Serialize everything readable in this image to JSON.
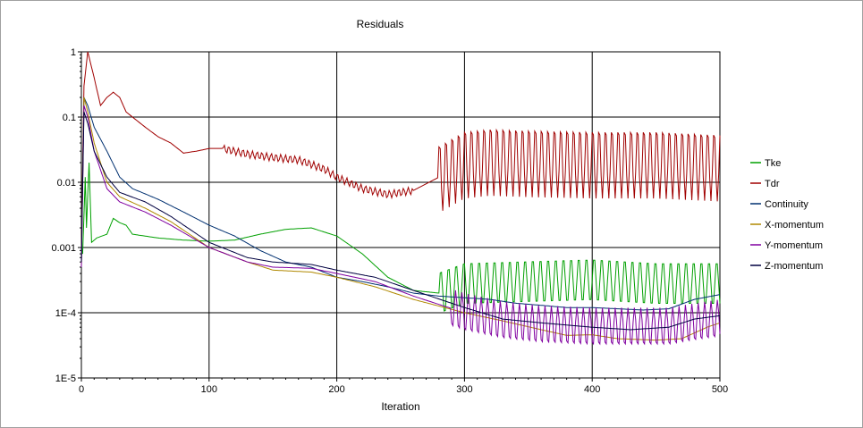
{
  "chart_data": {
    "type": "line",
    "title": "Residuals",
    "xlabel": "Iteration",
    "ylabel": "",
    "xlim": [
      0,
      500
    ],
    "ylim": [
      1e-05,
      1
    ],
    "y_scale": "log",
    "grid": true,
    "legend_position": "right",
    "x_ticks": [
      "0",
      "100",
      "200",
      "300",
      "400",
      "500"
    ],
    "y_ticks": [
      "1",
      "0.1",
      "0.01",
      "0.001",
      "1E-4",
      "1E-5"
    ],
    "series": [
      {
        "name": "Tke",
        "color": "#00a000",
        "oscillation": {
          "start": 280,
          "period": 6,
          "amplitude": 0.35
        },
        "points": [
          [
            1,
            0.0008
          ],
          [
            3,
            0.012
          ],
          [
            4,
            0.002
          ],
          [
            6,
            0.02
          ],
          [
            8,
            0.0012
          ],
          [
            12,
            0.0014
          ],
          [
            20,
            0.0016
          ],
          [
            25,
            0.0028
          ],
          [
            30,
            0.0024
          ],
          [
            35,
            0.0022
          ],
          [
            40,
            0.0016
          ],
          [
            60,
            0.0014
          ],
          [
            80,
            0.0013
          ],
          [
            100,
            0.00125
          ],
          [
            120,
            0.0013
          ],
          [
            140,
            0.0016
          ],
          [
            160,
            0.0019
          ],
          [
            180,
            0.002
          ],
          [
            200,
            0.0015
          ],
          [
            220,
            0.0008
          ],
          [
            240,
            0.00035
          ],
          [
            260,
            0.00022
          ],
          [
            280,
            0.0002
          ],
          [
            300,
            0.00028
          ],
          [
            350,
            0.0003
          ],
          [
            400,
            0.00032
          ],
          [
            450,
            0.00028
          ],
          [
            500,
            0.00028
          ]
        ]
      },
      {
        "name": "Tdr",
        "color": "#a00000",
        "oscillation": {
          "start": 280,
          "period": 5,
          "amplitude": 0.55
        },
        "points": [
          [
            0,
            0.001
          ],
          [
            2,
            0.3
          ],
          [
            5,
            1.0
          ],
          [
            10,
            0.4
          ],
          [
            15,
            0.15
          ],
          [
            20,
            0.2
          ],
          [
            25,
            0.24
          ],
          [
            30,
            0.2
          ],
          [
            35,
            0.12
          ],
          [
            40,
            0.1
          ],
          [
            50,
            0.07
          ],
          [
            60,
            0.05
          ],
          [
            70,
            0.04
          ],
          [
            80,
            0.028
          ],
          [
            90,
            0.03
          ],
          [
            100,
            0.033
          ],
          [
            110,
            0.033
          ],
          [
            130,
            0.027
          ],
          [
            150,
            0.024
          ],
          [
            170,
            0.022
          ],
          [
            190,
            0.016
          ],
          [
            200,
            0.012
          ],
          [
            220,
            0.008
          ],
          [
            240,
            0.0065
          ],
          [
            260,
            0.0075
          ],
          [
            280,
            0.012
          ],
          [
            300,
            0.02
          ],
          [
            320,
            0.022
          ],
          [
            350,
            0.021
          ],
          [
            400,
            0.02
          ],
          [
            450,
            0.02
          ],
          [
            500,
            0.018
          ]
        ]
      },
      {
        "name": "Continuity",
        "color": "#003070",
        "oscillation": null,
        "points": [
          [
            0,
            0.0006
          ],
          [
            2,
            0.2
          ],
          [
            5,
            0.15
          ],
          [
            10,
            0.07
          ],
          [
            20,
            0.03
          ],
          [
            30,
            0.012
          ],
          [
            40,
            0.008
          ],
          [
            60,
            0.0055
          ],
          [
            80,
            0.0035
          ],
          [
            100,
            0.0022
          ],
          [
            120,
            0.0015
          ],
          [
            140,
            0.0009
          ],
          [
            160,
            0.0006
          ],
          [
            180,
            0.0005
          ],
          [
            200,
            0.00035
          ],
          [
            220,
            0.0003
          ],
          [
            240,
            0.00025
          ],
          [
            260,
            0.0002
          ],
          [
            280,
            0.00018
          ],
          [
            300,
            0.00017
          ],
          [
            320,
            0.00016
          ],
          [
            340,
            0.00014
          ],
          [
            360,
            0.00013
          ],
          [
            380,
            0.00012
          ],
          [
            400,
            0.00012
          ],
          [
            420,
            0.000115
          ],
          [
            440,
            0.00011
          ],
          [
            460,
            0.000115
          ],
          [
            480,
            0.00016
          ],
          [
            500,
            0.00019
          ]
        ]
      },
      {
        "name": "X-momentum",
        "color": "#b08800",
        "oscillation": null,
        "points": [
          [
            0,
            0.0005
          ],
          [
            2,
            0.2
          ],
          [
            5,
            0.12
          ],
          [
            10,
            0.04
          ],
          [
            20,
            0.01
          ],
          [
            30,
            0.006
          ],
          [
            50,
            0.004
          ],
          [
            70,
            0.0025
          ],
          [
            100,
            0.001
          ],
          [
            130,
            0.0006
          ],
          [
            150,
            0.00045
          ],
          [
            180,
            0.00042
          ],
          [
            200,
            0.00035
          ],
          [
            230,
            0.00025
          ],
          [
            260,
            0.00016
          ],
          [
            300,
            0.0001
          ],
          [
            330,
            7.5e-05
          ],
          [
            360,
            5.5e-05
          ],
          [
            380,
            4.5e-05
          ],
          [
            400,
            4.6e-05
          ],
          [
            420,
            4e-05
          ],
          [
            450,
            3.8e-05
          ],
          [
            470,
            4e-05
          ],
          [
            490,
            6e-05
          ],
          [
            500,
            7e-05
          ]
        ]
      },
      {
        "name": "Y-momentum",
        "color": "#8000a0",
        "oscillation": {
          "start": 290,
          "period": 5,
          "amplitude": 0.3
        },
        "points": [
          [
            0,
            0.0005
          ],
          [
            2,
            0.15
          ],
          [
            5,
            0.1
          ],
          [
            10,
            0.03
          ],
          [
            20,
            0.008
          ],
          [
            30,
            0.005
          ],
          [
            50,
            0.0035
          ],
          [
            70,
            0.0022
          ],
          [
            100,
            0.001
          ],
          [
            130,
            0.0006
          ],
          [
            150,
            0.0005
          ],
          [
            180,
            0.00048
          ],
          [
            200,
            0.0004
          ],
          [
            230,
            0.0003
          ],
          [
            260,
            0.00018
          ],
          [
            300,
            0.0001
          ],
          [
            330,
            7.5e-05
          ],
          [
            360,
            6.5e-05
          ],
          [
            400,
            6e-05
          ],
          [
            430,
            6e-05
          ],
          [
            460,
            6e-05
          ],
          [
            480,
            7e-05
          ],
          [
            500,
            8e-05
          ]
        ]
      },
      {
        "name": "Z-momentum",
        "color": "#000040",
        "oscillation": null,
        "points": [
          [
            0,
            0.0006
          ],
          [
            2,
            0.12
          ],
          [
            5,
            0.08
          ],
          [
            10,
            0.03
          ],
          [
            20,
            0.012
          ],
          [
            30,
            0.007
          ],
          [
            50,
            0.005
          ],
          [
            70,
            0.003
          ],
          [
            100,
            0.0012
          ],
          [
            130,
            0.0007
          ],
          [
            150,
            0.0006
          ],
          [
            180,
            0.00055
          ],
          [
            200,
            0.00045
          ],
          [
            230,
            0.00035
          ],
          [
            260,
            0.00022
          ],
          [
            300,
            0.00012
          ],
          [
            330,
            8e-05
          ],
          [
            360,
            7e-05
          ],
          [
            400,
            6e-05
          ],
          [
            430,
            5.5e-05
          ],
          [
            460,
            6e-05
          ],
          [
            480,
            8e-05
          ],
          [
            500,
            9e-05
          ]
        ]
      }
    ]
  }
}
